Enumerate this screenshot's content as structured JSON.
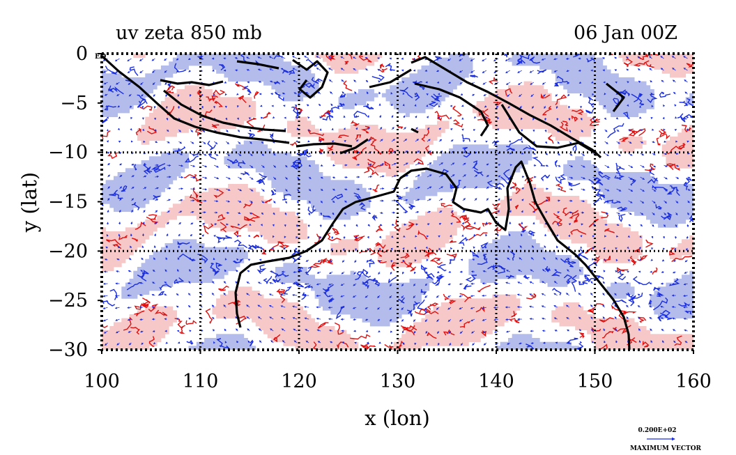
{
  "chart_data": {
    "type": "map",
    "title_left": "uv zeta 850 mb",
    "title_right": "06 Jan 00Z",
    "xlabel": "x (lon)",
    "ylabel": "y (lat)",
    "xlim": [
      100,
      160
    ],
    "ylim": [
      -30,
      0
    ],
    "x_ticks": [
      100,
      110,
      120,
      130,
      140,
      150,
      160
    ],
    "x_tick_labels": [
      "100",
      "110",
      "120",
      "130",
      "140",
      "150",
      "160"
    ],
    "y_ticks": [
      0,
      -5,
      -10,
      -15,
      -20,
      -25,
      -30
    ],
    "y_tick_labels": [
      "0",
      "−5",
      "−10",
      "−15",
      "−20",
      "−25",
      "−30"
    ],
    "grid_lines_lon": [
      110,
      120,
      130,
      140,
      150
    ],
    "grid_lines_lat": [
      -10,
      -20
    ],
    "eq_marker": "EQ",
    "vector_key": {
      "value_label": "0.200E+02",
      "caption": "MAXIMUM VECTOR"
    },
    "colors": {
      "positive_fill": "#f7c8c8",
      "positive_contour": "#e01010",
      "negative_fill": "#b4bcec",
      "negative_contour": "#1a2ee0",
      "vectors": "#1a2ee0",
      "coastline": "#000000",
      "frame": "#000000"
    }
  }
}
